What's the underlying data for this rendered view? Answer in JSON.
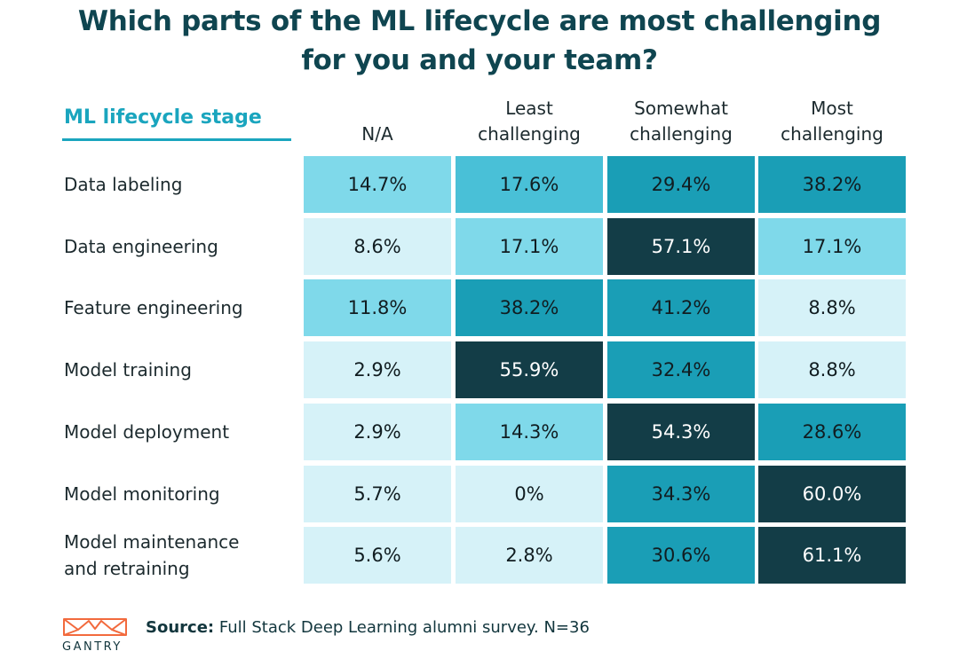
{
  "chart_data": {
    "type": "table",
    "title_lines": [
      "Which parts of the ML lifecycle are most challenging",
      "for you and your team?"
    ],
    "row_header": "ML lifecycle stage",
    "columns": [
      {
        "lines": [
          "N/A"
        ]
      },
      {
        "lines": [
          "Least",
          "challenging"
        ]
      },
      {
        "lines": [
          "Somewhat",
          "challenging"
        ]
      },
      {
        "lines": [
          "Most",
          "challenging"
        ]
      }
    ],
    "rows": [
      {
        "label": "Data labeling",
        "values": [
          "14.7%",
          "17.6%",
          "29.4%",
          "38.2%"
        ]
      },
      {
        "label": "Data engineering",
        "values": [
          "8.6%",
          "17.1%",
          "57.1%",
          "17.1%"
        ]
      },
      {
        "label": "Feature engineering",
        "values": [
          "11.8%",
          "38.2%",
          "41.2%",
          "8.8%"
        ]
      },
      {
        "label": "Model training",
        "values": [
          "2.9%",
          "55.9%",
          "32.4%",
          "8.8%"
        ]
      },
      {
        "label": "Model deployment",
        "values": [
          "2.9%",
          "14.3%",
          "54.3%",
          "28.6%"
        ]
      },
      {
        "label": "Model monitoring",
        "values": [
          "5.7%",
          "0%",
          "34.3%",
          "60.0%"
        ]
      },
      {
        "label": "Model maintenance\nand retraining",
        "values": [
          "5.6%",
          "2.8%",
          "30.6%",
          "61.1%"
        ]
      }
    ],
    "colors": {
      "low": "#d6f2f8",
      "mid_low": "#7fd9ea",
      "mid": "#49c0d7",
      "high": "#1a9eb6",
      "max": "#133d47",
      "dark_text": "#111d21",
      "light_text": "#ffffff"
    }
  },
  "footer": {
    "source_label": "Source:",
    "source_text": " Full Stack Deep Learning alumni survey. N=36",
    "logo_text": "GANTRY",
    "logo_color": "#f26a3d"
  }
}
